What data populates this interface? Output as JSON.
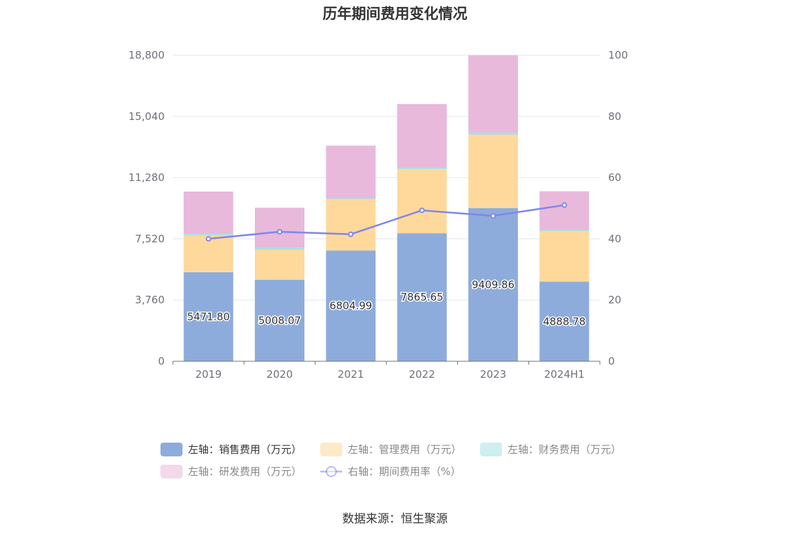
{
  "chart_data": {
    "type": "bar",
    "title": "历年期间费用变化情况",
    "categories": [
      "2019",
      "2020",
      "2021",
      "2022",
      "2023",
      "2024H1"
    ],
    "left_axis": {
      "min": 0,
      "max": 18800,
      "ticks": [
        "0",
        "3,760",
        "7,520",
        "11,280",
        "15,040",
        "18,800"
      ]
    },
    "right_axis": {
      "min": 0,
      "max": 100,
      "ticks": [
        "0",
        "20",
        "40",
        "60",
        "80",
        "100"
      ]
    },
    "grid": true,
    "legend_position": "bottom",
    "series": [
      {
        "name": "左轴：销售费用（万元）",
        "type": "bar",
        "stack": true,
        "axis": "left",
        "color": "#8eacdb",
        "values": [
          5471.8,
          5008.07,
          6804.99,
          7865.65,
          9409.86,
          4888.78
        ],
        "labels": [
          "5471.80",
          "5008.07",
          "6804.99",
          "7865.65",
          "9409.86",
          "4888.78"
        ]
      },
      {
        "name": "左轴：管理费用（万元）",
        "type": "bar",
        "stack": true,
        "axis": "left",
        "color": "#fed99b",
        "values": [
          2250,
          1850,
          3150,
          3950,
          4500,
          3100
        ]
      },
      {
        "name": "左轴：财务费用（万元）",
        "type": "bar",
        "stack": true,
        "axis": "left",
        "color": "#a8e0e3",
        "values": [
          100,
          120,
          60,
          80,
          130,
          100
        ]
      },
      {
        "name": "左轴：研发费用（万元）",
        "type": "bar",
        "stack": true,
        "axis": "left",
        "color": "#e8b9db",
        "values": [
          2600,
          2450,
          3230,
          3900,
          4750,
          2350
        ]
      },
      {
        "name": "右轴：期间费用率（%）",
        "type": "line",
        "axis": "right",
        "color": "#7f85ee",
        "values": [
          40.0,
          42.3,
          41.5,
          49.3,
          47.5,
          51.0
        ]
      }
    ]
  },
  "source": "数据来源：恒生聚源"
}
